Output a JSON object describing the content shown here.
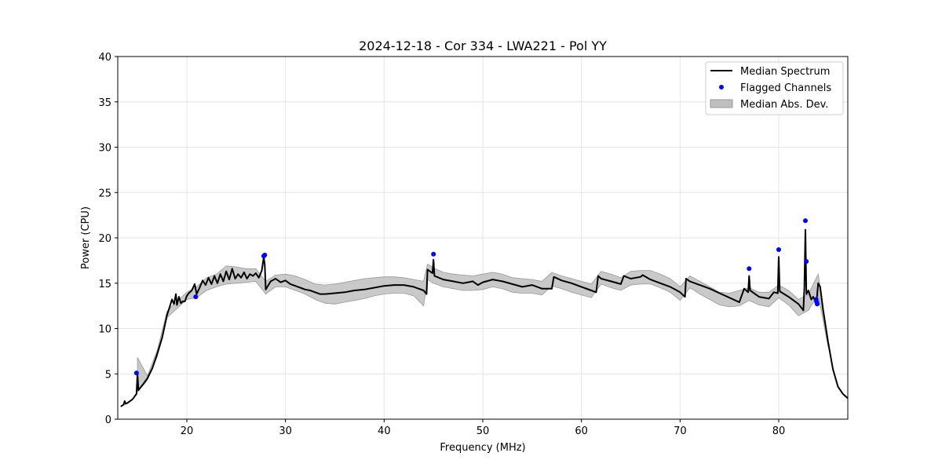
{
  "chart_data": {
    "type": "line",
    "title": "2024-12-18 - Cor 334 - LWA221 - Pol YY",
    "xlabel": "Frequency (MHz)",
    "ylabel": "Power (CPU)",
    "xlim": [
      13,
      87
    ],
    "ylim": [
      0,
      40
    ],
    "xticks": [
      20,
      30,
      40,
      50,
      60,
      70,
      80
    ],
    "yticks": [
      0,
      5,
      10,
      15,
      20,
      25,
      30,
      35,
      40
    ],
    "grid": true,
    "legend_position": "top-right",
    "legend": [
      "Median Spectrum",
      "Flagged Channels",
      "Median Abs. Dev."
    ],
    "colors": {
      "median": "#000000",
      "flagged": "#0000ff",
      "mad_fill": "#bfbfbf",
      "mad_edge": "#999999"
    },
    "series": [
      {
        "name": "Median Spectrum",
        "x": [
          13.3,
          13.6,
          13.7,
          13.8,
          14.0,
          14.5,
          14.9,
          15.0,
          15.1,
          15.6,
          16.0,
          16.5,
          17.0,
          17.5,
          18.0,
          18.3,
          18.5,
          18.7,
          18.9,
          19.0,
          19.2,
          19.4,
          19.6,
          19.8,
          20.0,
          20.2,
          20.5,
          20.8,
          21.0,
          21.3,
          21.6,
          21.9,
          22.2,
          22.5,
          22.8,
          23.1,
          23.4,
          23.7,
          24.0,
          24.3,
          24.6,
          24.9,
          25.2,
          25.5,
          25.8,
          26.1,
          26.4,
          26.7,
          27.0,
          27.3,
          27.6,
          27.8,
          27.9,
          28.0,
          28.5,
          29.0,
          29.5,
          30.0,
          30.5,
          31.0,
          31.5,
          32.0,
          32.5,
          33.0,
          33.5,
          34.0,
          35.0,
          36.0,
          37.0,
          38.0,
          39.0,
          40.0,
          41.0,
          42.0,
          43.0,
          44.0,
          44.3,
          44.4,
          44.9,
          45.0,
          45.1,
          46.0,
          47.0,
          48.0,
          49.0,
          49.5,
          50.0,
          51.0,
          52.0,
          53.0,
          54.0,
          55.0,
          56.0,
          57.0,
          57.2,
          58.0,
          59.0,
          60.0,
          61.0,
          61.5,
          61.7,
          62.0,
          63.0,
          64.0,
          64.3,
          65.0,
          66.0,
          66.2,
          67.0,
          68.0,
          69.0,
          70.0,
          70.5,
          70.6,
          71.0,
          72.0,
          73.0,
          74.0,
          75.0,
          76.0,
          76.5,
          76.9,
          77.0,
          77.1,
          78.0,
          79.0,
          79.5,
          79.9,
          80.0,
          80.1,
          81.0,
          82.0,
          82.5,
          82.6,
          82.7,
          82.8,
          83.0,
          83.3,
          83.5,
          83.7,
          83.8,
          84.0,
          84.2,
          84.5,
          85.0,
          85.5,
          86.0,
          86.5,
          87.0
        ],
        "y": [
          1.4,
          1.6,
          2.0,
          1.7,
          1.8,
          2.2,
          2.8,
          5.0,
          3.2,
          3.9,
          4.5,
          5.6,
          7.2,
          9.0,
          11.5,
          12.5,
          13.2,
          12.7,
          13.8,
          12.6,
          13.5,
          12.8,
          13.0,
          13.0,
          13.6,
          13.9,
          14.2,
          14.9,
          13.8,
          14.5,
          15.3,
          14.8,
          15.6,
          14.9,
          15.8,
          15.0,
          16.0,
          15.2,
          16.3,
          15.4,
          16.6,
          15.5,
          16.0,
          15.6,
          16.2,
          15.5,
          16.0,
          15.8,
          16.1,
          15.6,
          16.4,
          17.9,
          17.0,
          14.3,
          15.2,
          15.5,
          15.1,
          15.3,
          14.9,
          14.7,
          14.5,
          14.3,
          14.2,
          14.0,
          13.8,
          13.8,
          13.9,
          14.0,
          14.2,
          14.3,
          14.5,
          14.7,
          14.8,
          14.8,
          14.6,
          14.2,
          13.8,
          16.5,
          16.1,
          17.6,
          15.8,
          15.4,
          15.2,
          15.0,
          15.2,
          14.8,
          15.1,
          15.4,
          15.2,
          14.9,
          14.6,
          14.8,
          14.4,
          14.4,
          15.7,
          15.3,
          15.0,
          14.6,
          14.2,
          14.0,
          15.8,
          15.5,
          15.2,
          14.9,
          15.8,
          15.5,
          15.7,
          15.9,
          15.4,
          15.0,
          14.6,
          14.0,
          13.5,
          15.5,
          15.2,
          14.8,
          14.4,
          13.9,
          13.4,
          12.9,
          14.4,
          14.0,
          15.8,
          14.2,
          13.5,
          13.3,
          14.0,
          13.9,
          17.9,
          14.1,
          13.5,
          12.7,
          12.0,
          14.6,
          20.9,
          13.8,
          14.2,
          13.2,
          13.5,
          13.0,
          12.6,
          15.0,
          14.6,
          12.0,
          8.5,
          5.5,
          3.6,
          2.8,
          2.3
        ]
      },
      {
        "name": "Flagged Channels",
        "x": [
          14.9,
          20.9,
          27.8,
          27.9,
          45.0,
          77.0,
          80.0,
          82.7,
          82.8,
          83.8,
          83.85,
          83.9
        ],
        "y": [
          5.1,
          13.5,
          18.0,
          18.1,
          18.2,
          16.6,
          18.7,
          21.9,
          17.4,
          13.2,
          12.9,
          12.7
        ]
      },
      {
        "name": "Median Abs. Dev.",
        "x": [
          15.0,
          16.0,
          17.0,
          18.0,
          19.0,
          20.0,
          21.0,
          22.0,
          23.0,
          24.0,
          25.0,
          26.0,
          27.0,
          28.0,
          29.0,
          30.0,
          31.0,
          32.0,
          33.0,
          34.0,
          35.0,
          36.0,
          37.0,
          38.0,
          39.0,
          40.0,
          41.0,
          42.0,
          43.0,
          44.0,
          44.4,
          45.0,
          46.0,
          47.0,
          48.0,
          49.0,
          50.0,
          51.0,
          52.0,
          53.0,
          54.0,
          55.0,
          56.0,
          57.0,
          58.0,
          59.0,
          60.0,
          61.0,
          62.0,
          63.0,
          64.0,
          65.0,
          66.0,
          67.0,
          68.0,
          69.0,
          70.0,
          71.0,
          72.0,
          73.0,
          74.0,
          75.0,
          76.0,
          77.0,
          78.0,
          79.0,
          80.0,
          81.0,
          82.0,
          83.0,
          84.0,
          85.0
        ],
        "lower": [
          3.0,
          4.3,
          6.9,
          11.2,
          12.2,
          13.2,
          13.4,
          14.2,
          14.6,
          14.9,
          15.0,
          15.1,
          15.2,
          13.8,
          14.6,
          14.6,
          14.2,
          13.8,
          13.2,
          12.8,
          12.7,
          12.9,
          13.1,
          13.3,
          13.6,
          13.8,
          13.9,
          13.9,
          13.6,
          12.5,
          15.4,
          15.0,
          14.6,
          14.4,
          14.2,
          14.2,
          14.3,
          14.6,
          14.4,
          14.0,
          13.9,
          13.9,
          13.7,
          14.7,
          14.4,
          14.0,
          13.7,
          13.4,
          14.9,
          14.5,
          14.2,
          14.8,
          14.9,
          14.9,
          14.5,
          14.0,
          13.1,
          14.5,
          13.8,
          13.2,
          12.6,
          12.4,
          12.5,
          13.1,
          12.6,
          12.4,
          13.4,
          12.6,
          11.4,
          12.0,
          13.7,
          8.0
        ],
        "upper": [
          6.8,
          4.8,
          7.6,
          11.9,
          13.0,
          14.0,
          14.6,
          15.6,
          16.0,
          16.9,
          16.8,
          16.6,
          16.6,
          15.2,
          15.9,
          16.0,
          15.8,
          15.4,
          14.9,
          14.8,
          14.9,
          15.1,
          15.3,
          15.5,
          15.6,
          15.7,
          15.7,
          15.6,
          15.4,
          15.2,
          17.1,
          16.7,
          16.2,
          16.0,
          15.9,
          15.8,
          16.0,
          16.2,
          16.0,
          15.6,
          15.5,
          15.4,
          15.2,
          16.2,
          15.8,
          15.5,
          15.2,
          14.9,
          16.3,
          16.0,
          15.6,
          16.3,
          16.4,
          16.4,
          16.0,
          15.5,
          14.6,
          15.8,
          15.2,
          14.6,
          14.0,
          13.9,
          14.2,
          14.5,
          14.0,
          14.0,
          14.8,
          14.2,
          13.2,
          13.8,
          16.0,
          8.8
        ]
      }
    ]
  }
}
